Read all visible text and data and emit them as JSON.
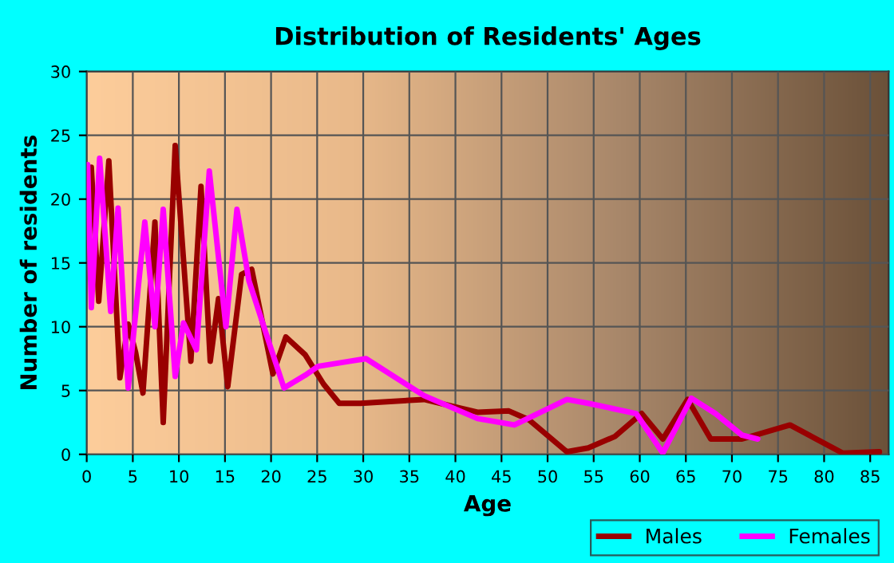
{
  "chart_data": {
    "type": "line",
    "title": "Distribution of Residents' Ages",
    "xlabel": "Age",
    "ylabel": "Number of residents",
    "xlim": [
      0,
      87
    ],
    "xticks": [
      0,
      5,
      10,
      15,
      20,
      25,
      30,
      35,
      40,
      45,
      50,
      55,
      60,
      65,
      70,
      75,
      80,
      85
    ],
    "ylim": [
      0,
      30
    ],
    "yticks": [
      0,
      5,
      10,
      15,
      20,
      25,
      30
    ],
    "grid": true,
    "legend": "bottom right",
    "marker": "none",
    "line_style": "solid",
    "series": [
      {
        "name": "Males",
        "color": "#990000",
        "x": [
          0.5,
          1.3,
          2.4,
          3.6,
          4.5,
          5.3,
          6.1,
          7.4,
          8.3,
          9.6,
          11.3,
          12.4,
          13.4,
          14.3,
          15.3,
          16.8,
          17.9,
          20.2,
          21.6,
          23.7,
          25.7,
          27.4,
          29.7,
          36.6,
          42.4,
          45.8,
          48,
          52.1,
          54.4,
          57.3,
          60.2,
          62.5,
          65.2,
          67.7,
          71.1,
          76.3,
          82,
          86
        ],
        "values": [
          22.5,
          12,
          23,
          6,
          10.2,
          8,
          4.8,
          18.2,
          2.5,
          24.2,
          7.3,
          21,
          7.3,
          12.2,
          5.3,
          14.1,
          14.5,
          6.3,
          9.2,
          7.8,
          5.5,
          4,
          4,
          4.3,
          3.3,
          3.4,
          2.7,
          0.2,
          0.5,
          1.4,
          3.2,
          1.2,
          4.3,
          1.2,
          1.2,
          2.3,
          0.1,
          0.2
        ]
      },
      {
        "name": "Females",
        "color": "#ff00ff",
        "x": [
          0.1,
          0.5,
          1.4,
          2.6,
          3.4,
          4.5,
          6.3,
          7.4,
          8.3,
          9.6,
          10.5,
          11.9,
          13.3,
          15.1,
          16.3,
          17.6,
          19.9,
          21.4,
          23.7,
          25.1,
          28.6,
          30.3,
          36.6,
          42.4,
          46.4,
          52.1,
          54.4,
          59.6,
          62.5,
          65.6,
          68.2,
          71.1,
          72.8
        ],
        "values": [
          22.7,
          11.5,
          23.2,
          11.2,
          19.3,
          5.2,
          18.2,
          10,
          19.2,
          6.1,
          10.3,
          8.2,
          22.2,
          10,
          19.2,
          13.6,
          8.5,
          5.2,
          6.2,
          6.9,
          7.3,
          7.5,
          4.6,
          2.8,
          2.3,
          4.3,
          4,
          3.2,
          0.1,
          4.4,
          3.2,
          1.5,
          1.2
        ]
      }
    ]
  }
}
